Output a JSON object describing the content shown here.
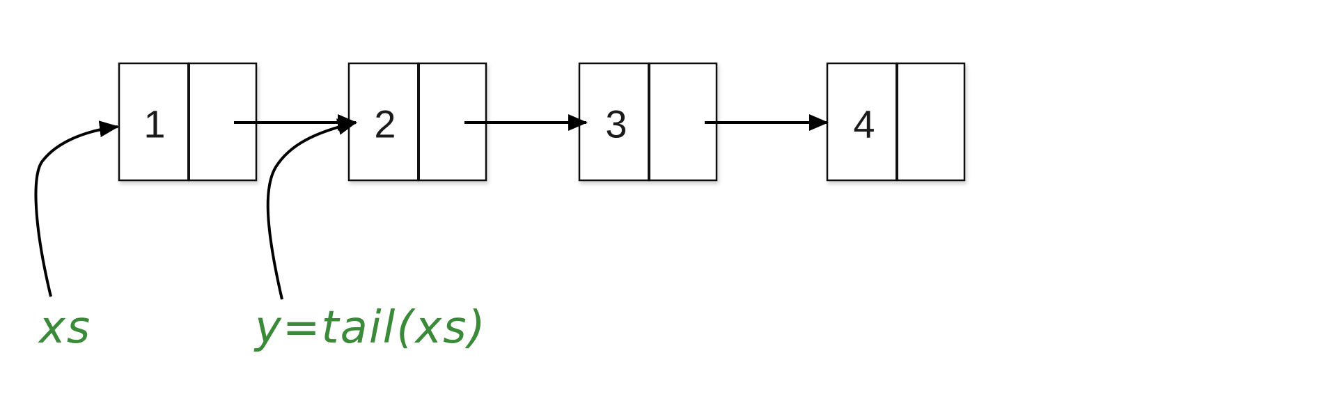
{
  "diagram": {
    "nodes": [
      {
        "value": "1"
      },
      {
        "value": "2"
      },
      {
        "value": "3"
      },
      {
        "value": "4"
      }
    ],
    "labels": {
      "xs": "xs",
      "tail": "y=tail(xs)"
    },
    "colors": {
      "label": "#3a8a3a",
      "box_stroke": "#111111",
      "arrow": "#000000"
    }
  }
}
